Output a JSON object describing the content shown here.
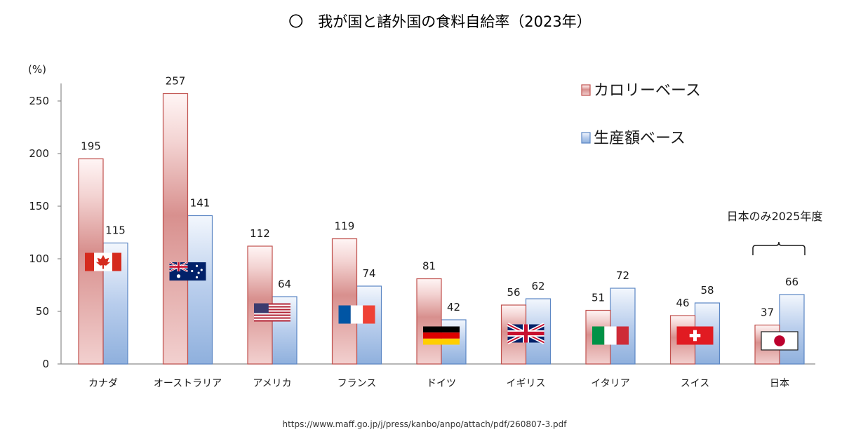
{
  "page": {
    "title": "〇　我が国と諸外国の食料自給率（2023年）",
    "source": "https://www.maff.go.jp/j/press/kanbo/anpo/attach/pdf/260807-3.pdf",
    "japan_note": "日本のみ2025年度"
  },
  "colors": {
    "calorie_edge": "#c0504d",
    "calorie_fill_dark": "#d58b89",
    "calorie_fill_light": "#fbeceb",
    "production_edge": "#5b86c4",
    "production_fill_dark": "#8fb0dd",
    "production_fill_light": "#e8f0fa"
  },
  "chart_data": {
    "type": "bar",
    "ylabel": "(%)",
    "ylim": [
      0,
      250
    ],
    "yticks": [
      0,
      50,
      100,
      150,
      200,
      250
    ],
    "categories": [
      "カナダ",
      "オーストラリア",
      "アメリカ",
      "フランス",
      "ドイツ",
      "イギリス",
      "イタリア",
      "スイス",
      "日本"
    ],
    "series": [
      {
        "name": "カロリーベース",
        "values": [
          195,
          257,
          112,
          119,
          81,
          56,
          51,
          46,
          37
        ]
      },
      {
        "name": "生産額ベース",
        "values": [
          115,
          141,
          64,
          74,
          42,
          62,
          72,
          58,
          66
        ]
      }
    ],
    "legend": "top-right",
    "grid": false,
    "flags": [
      "canada-flag",
      "australia-flag",
      "usa-flag",
      "france-flag",
      "germany-flag",
      "uk-flag",
      "italy-flag",
      "switzerland-flag",
      "japan-flag"
    ],
    "flag_levels": [
      97,
      88,
      49,
      47,
      27,
      29,
      27,
      27,
      22
    ]
  }
}
